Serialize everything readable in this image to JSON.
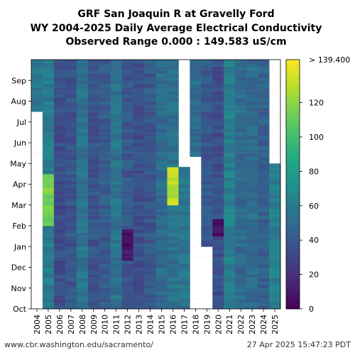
{
  "chart_data": {
    "type": "heatmap",
    "title_lines": [
      "GRF San Joaquin R at Gravelly Ford",
      "WY 2004-2025 Daily Average Electrical Conductivity",
      "Observed Range 0.000 : 149.583 uS/cm"
    ],
    "x_categories": [
      "2004",
      "2005",
      "2006",
      "2007",
      "2008",
      "2009",
      "2010",
      "2011",
      "2012",
      "2013",
      "2014",
      "2015",
      "2016",
      "2017",
      "2018",
      "2019",
      "2020",
      "2021",
      "2022",
      "2023",
      "2024",
      "2025"
    ],
    "y_months": [
      "Oct",
      "Nov",
      "Dec",
      "Jan",
      "Feb",
      "Mar",
      "Apr",
      "May",
      "Jun",
      "Jul",
      "Aug",
      "Sep"
    ],
    "colorbar": {
      "colormap": "viridis",
      "range": [
        0,
        145
      ],
      "ticks": [
        0,
        20,
        40,
        60,
        80,
        100,
        120
      ],
      "top_label": "> 139.400"
    },
    "year_base_values": [
      58,
      60,
      35,
      38,
      55,
      38,
      42,
      55,
      40,
      35,
      40,
      50,
      55,
      56,
      52,
      40,
      35,
      62,
      50,
      50,
      45,
      62
    ],
    "blank_ranges": [
      {
        "year": "2004",
        "from": "Oct",
        "to": "mid-Jul"
      },
      {
        "year": "2017",
        "from": "late-Apr",
        "to": "Sep"
      },
      {
        "year": "2018",
        "from": "Oct",
        "to": "May"
      },
      {
        "year": "2019",
        "from": "Oct",
        "to": "Dec"
      },
      {
        "year": "2025",
        "from": "May",
        "to": "Sep"
      }
    ],
    "notable_features": [
      {
        "year": "2005",
        "months": "Feb-Apr",
        "approx_value": 115
      },
      {
        "year": "2016",
        "months": "Mar-Apr",
        "approx_value": 130
      },
      {
        "year": "2012",
        "months": "Dec-Jan",
        "approx_value": 8
      },
      {
        "year": "2020",
        "months": "Jan",
        "approx_value": 8
      }
    ]
  },
  "footer": {
    "source": "www.cbr.washington.edu/sacramento/",
    "timestamp": "27 Apr 2025 15:47:23 PDT"
  }
}
